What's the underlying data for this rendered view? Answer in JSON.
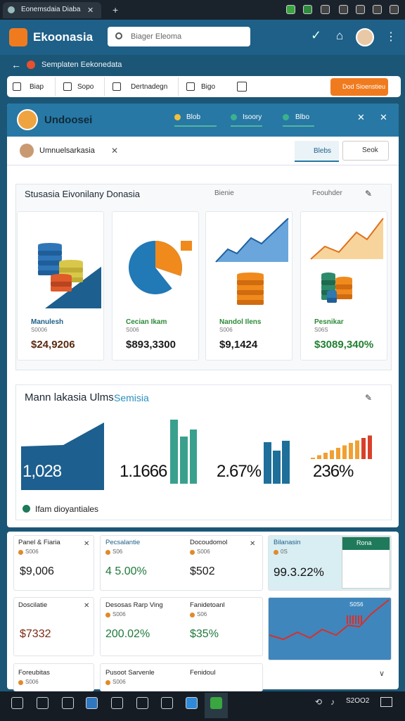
{
  "browser": {
    "tab": "Eonemsdaia Diaba"
  },
  "app": {
    "logo": "Ekoonasia",
    "search": "Biager Eleoma"
  },
  "breadcrumb": "Semplaten Eekonedata",
  "toolbar": {
    "items": [
      "Biap",
      "Sopo",
      "Dertnadegn",
      "Bigo"
    ],
    "button": "Dod Sioenstieu"
  },
  "panel": {
    "title": "Undoosei",
    "tabs": [
      "Blob",
      "Isoory",
      "Blbo"
    ],
    "user": "Umnuelsarkasia",
    "actions": [
      "Blebs",
      "Seok"
    ]
  },
  "section1": {
    "title": "Stusasia Eivonilany Donasia",
    "subtitles": [
      "Bienie",
      "Feouhder"
    ],
    "cards": [
      {
        "label": "Manulesh",
        "sub": "S0006",
        "value": "$24,9206"
      },
      {
        "label": "Cecian Ikam",
        "sub": "S006",
        "value": "$893,3300"
      },
      {
        "label": "Nandol Ilens",
        "sub": "S006",
        "value": "$9,1424"
      },
      {
        "label": "Pesnikar",
        "sub": "S06S",
        "value": "$3089,340%"
      }
    ]
  },
  "section2": {
    "title": "Mann lakasia Ulms",
    "highlight": "Semisia",
    "values": [
      "1,028",
      "1.1666",
      "2.67%",
      "236%"
    ],
    "footer": "Ifam dioyantiales"
  },
  "tiles": [
    {
      "label": "Panel & Fiaria",
      "sub": "S006",
      "value": "$9,006"
    },
    {
      "label": "Pecsalantie",
      "sub": "S06",
      "value": "4 5.00%"
    },
    {
      "label": "Docoudomol",
      "sub": "S006",
      "value": "$502"
    },
    {
      "label": "Bilanasin",
      "sub": "0S",
      "value": "99.3.22%"
    },
    {
      "label": "Doscilatie",
      "value": "$7332"
    },
    {
      "label": "Desosas Rarp Ving",
      "sub": "S006",
      "value": "200.02%"
    },
    {
      "label": "Fanidetoanl",
      "sub": "S06",
      "value": "$35%"
    },
    {
      "label": "Foreubitas",
      "sub": "S006"
    },
    {
      "label": "Pusoot Sarvenle",
      "sub": "S006"
    },
    {
      "label": "Fenidoul"
    }
  ],
  "tile_extras": {
    "badge": "Rona",
    "chart_label": "S0S6"
  },
  "taskbar": {
    "time": "S2OO2"
  }
}
